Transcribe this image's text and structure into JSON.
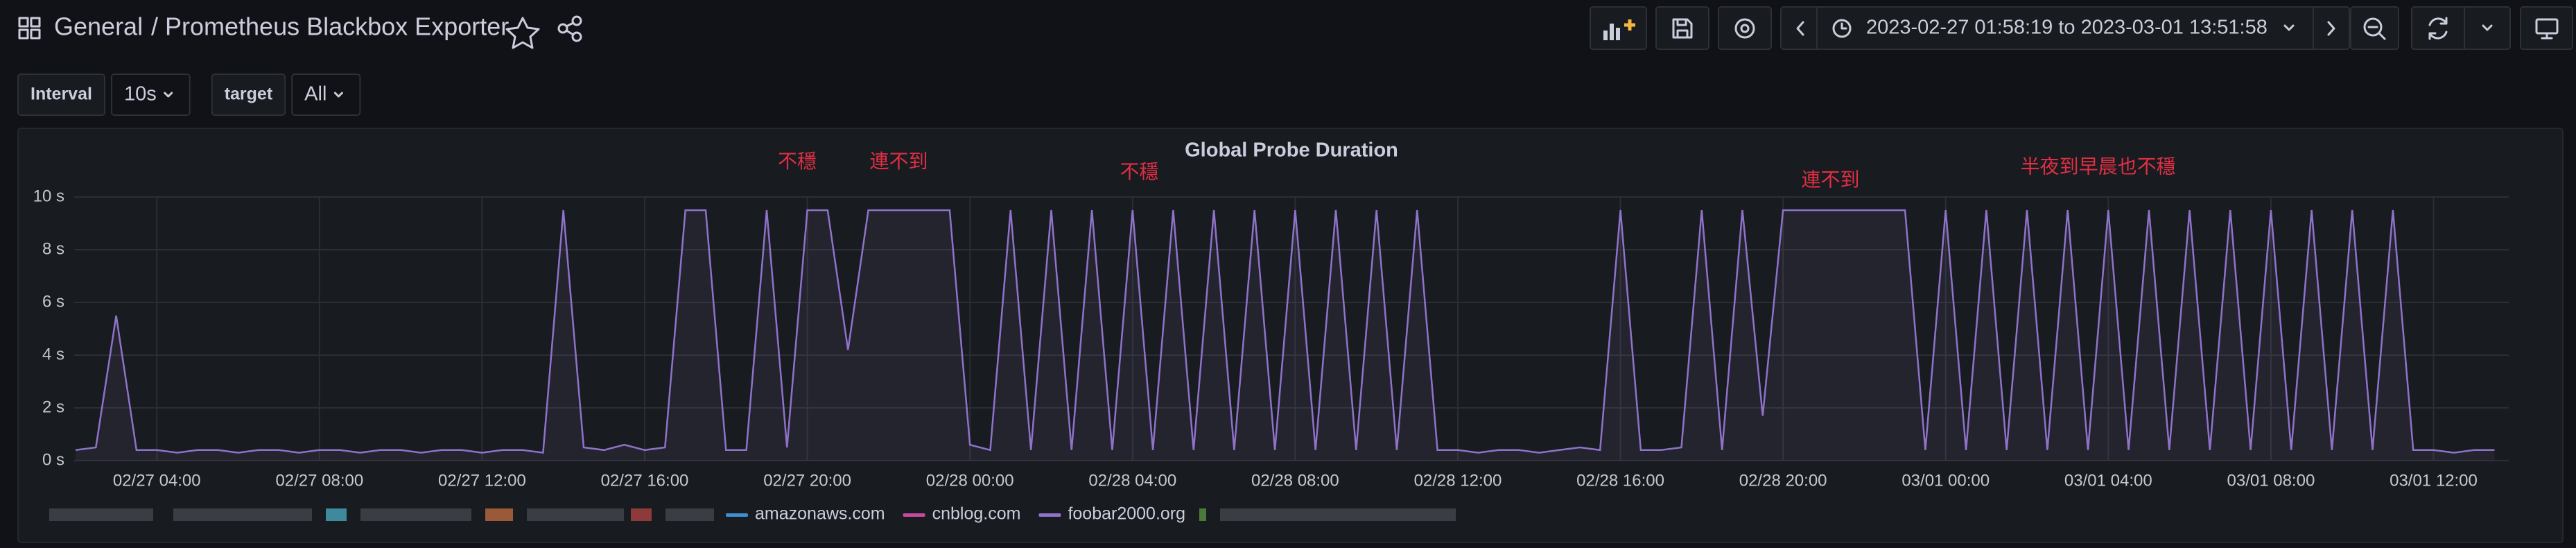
{
  "header": {
    "folder": "General",
    "title": "/ Prometheus Blackbox Exporter",
    "time_range": "2023-02-27 01:58:19 to 2023-03-01 13:51:58"
  },
  "variables": [
    {
      "label": "Interval",
      "value": "10s"
    },
    {
      "label": "target",
      "value": "All"
    }
  ],
  "chart_data": {
    "type": "line",
    "title": "Global Probe Duration",
    "x": [
      "02/27 02:00",
      "02/27 02:30",
      "02/27 03:00",
      "02/27 03:30",
      "02/27 04:00",
      "02/27 04:30",
      "02/27 05:00",
      "02/27 05:30",
      "02/27 06:00",
      "02/27 06:30",
      "02/27 07:00",
      "02/27 07:30",
      "02/27 08:00",
      "02/27 08:30",
      "02/27 09:00",
      "02/27 09:30",
      "02/27 10:00",
      "02/27 10:30",
      "02/27 11:00",
      "02/27 11:30",
      "02/27 12:00",
      "02/27 12:30",
      "02/27 13:00",
      "02/27 13:30",
      "02/27 14:00",
      "02/27 14:30",
      "02/27 15:00",
      "02/27 15:30",
      "02/27 16:00",
      "02/27 16:30",
      "02/27 17:00",
      "02/27 17:30",
      "02/27 18:00",
      "02/27 18:30",
      "02/27 19:00",
      "02/27 19:30",
      "02/27 20:00",
      "02/27 20:30",
      "02/27 21:00",
      "02/27 21:30",
      "02/27 22:00",
      "02/27 22:30",
      "02/27 23:00",
      "02/27 23:30",
      "02/28 00:00",
      "02/28 00:30",
      "02/28 01:00",
      "02/28 01:30",
      "02/28 02:00",
      "02/28 02:30",
      "02/28 03:00",
      "02/28 03:30",
      "02/28 04:00",
      "02/28 04:30",
      "02/28 05:00",
      "02/28 05:30",
      "02/28 06:00",
      "02/28 06:30",
      "02/28 07:00",
      "02/28 07:30",
      "02/28 08:00",
      "02/28 08:30",
      "02/28 09:00",
      "02/28 09:30",
      "02/28 10:00",
      "02/28 10:30",
      "02/28 11:00",
      "02/28 11:30",
      "02/28 12:00",
      "02/28 12:30",
      "02/28 13:00",
      "02/28 13:30",
      "02/28 14:00",
      "02/28 14:30",
      "02/28 15:00",
      "02/28 15:30",
      "02/28 16:00",
      "02/28 16:30",
      "02/28 17:00",
      "02/28 17:30",
      "02/28 18:00",
      "02/28 18:30",
      "02/28 19:00",
      "02/28 19:30",
      "02/28 20:00",
      "02/28 20:30",
      "02/28 21:00",
      "02/28 21:30",
      "02/28 22:00",
      "02/28 22:30",
      "02/28 23:00",
      "02/28 23:30",
      "03/01 00:00",
      "03/01 00:30",
      "03/01 01:00",
      "03/01 01:30",
      "03/01 02:00",
      "03/01 02:30",
      "03/01 03:00",
      "03/01 03:30",
      "03/01 04:00",
      "03/01 04:30",
      "03/01 05:00",
      "03/01 05:30",
      "03/01 06:00",
      "03/01 06:30",
      "03/01 07:00",
      "03/01 07:30",
      "03/01 08:00",
      "03/01 08:30",
      "03/01 09:00",
      "03/01 09:30",
      "03/01 10:00",
      "03/01 10:30",
      "03/01 11:00",
      "03/01 11:30",
      "03/01 12:00",
      "03/01 12:30",
      "03/01 13:00",
      "03/01 13:30"
    ],
    "series": [
      {
        "name": "foobar2000.org",
        "color": "#8f72c9",
        "values": [
          0.4,
          0.5,
          5.5,
          0.4,
          0.4,
          0.3,
          0.4,
          0.4,
          0.3,
          0.4,
          0.4,
          0.3,
          0.4,
          0.4,
          0.3,
          0.4,
          0.4,
          0.3,
          0.4,
          0.4,
          0.3,
          0.4,
          0.4,
          0.3,
          9.5,
          0.5,
          0.4,
          0.6,
          0.4,
          0.5,
          9.5,
          9.5,
          0.4,
          0.4,
          9.5,
          0.5,
          9.5,
          9.5,
          4.2,
          9.5,
          9.5,
          9.5,
          9.5,
          9.5,
          0.6,
          0.4,
          9.5,
          0.4,
          9.5,
          0.4,
          9.5,
          0.4,
          9.5,
          0.4,
          9.5,
          0.4,
          9.5,
          0.4,
          9.5,
          0.4,
          9.5,
          0.4,
          9.5,
          0.4,
          9.5,
          0.4,
          9.5,
          0.4,
          0.4,
          0.3,
          0.4,
          0.4,
          0.3,
          0.4,
          0.5,
          0.4,
          9.5,
          0.4,
          0.4,
          0.5,
          9.5,
          0.4,
          9.5,
          1.7,
          9.5,
          9.5,
          9.5,
          9.5,
          9.5,
          9.5,
          9.5,
          0.4,
          9.5,
          0.4,
          9.5,
          0.4,
          9.5,
          0.4,
          9.5,
          0.4,
          9.5,
          0.4,
          9.5,
          0.4,
          9.5,
          0.4,
          9.5,
          0.4,
          9.5,
          0.4,
          9.5,
          0.4,
          9.5,
          0.4,
          9.5,
          0.4,
          0.4,
          0.3,
          0.4,
          0.4
        ]
      }
    ],
    "legend": [
      {
        "name": "amazonaws.com",
        "color": "#3d8fd1"
      },
      {
        "name": "cnblog.com",
        "color": "#c7489d"
      }
    ],
    "xlim": [
      "02/27 01:58",
      "03/01 13:51"
    ],
    "xticks": [
      "02/27 04:00",
      "02/27 08:00",
      "02/27 12:00",
      "02/27 16:00",
      "02/27 20:00",
      "02/28 00:00",
      "02/28 04:00",
      "02/28 08:00",
      "02/28 12:00",
      "02/28 16:00",
      "02/28 20:00",
      "03/01 00:00",
      "03/01 04:00",
      "03/01 08:00",
      "03/01 12:00"
    ],
    "ylim": [
      0,
      10
    ],
    "yticks": [
      {
        "value": 0,
        "label": "0 s"
      },
      {
        "value": 2,
        "label": "2 s"
      },
      {
        "value": 4,
        "label": "4 s"
      },
      {
        "value": 6,
        "label": "6 s"
      },
      {
        "value": 8,
        "label": "8 s"
      },
      {
        "value": 10,
        "label": "10 s"
      }
    ],
    "grid": true,
    "annotations": [
      {
        "text": "不穩",
        "x": "02/27 19:45",
        "y": 11.3
      },
      {
        "text": "連不到",
        "x": "02/27 22:15",
        "y": 11.3
      },
      {
        "text": "不穩",
        "x": "02/28 04:10",
        "y": 10.9
      },
      {
        "text": "連不到",
        "x": "02/28 21:10",
        "y": 10.6
      },
      {
        "text": "半夜到早晨也不穩",
        "x": "03/01 03:45",
        "y": 11.1
      }
    ],
    "annotation_color": "#e02f44"
  }
}
